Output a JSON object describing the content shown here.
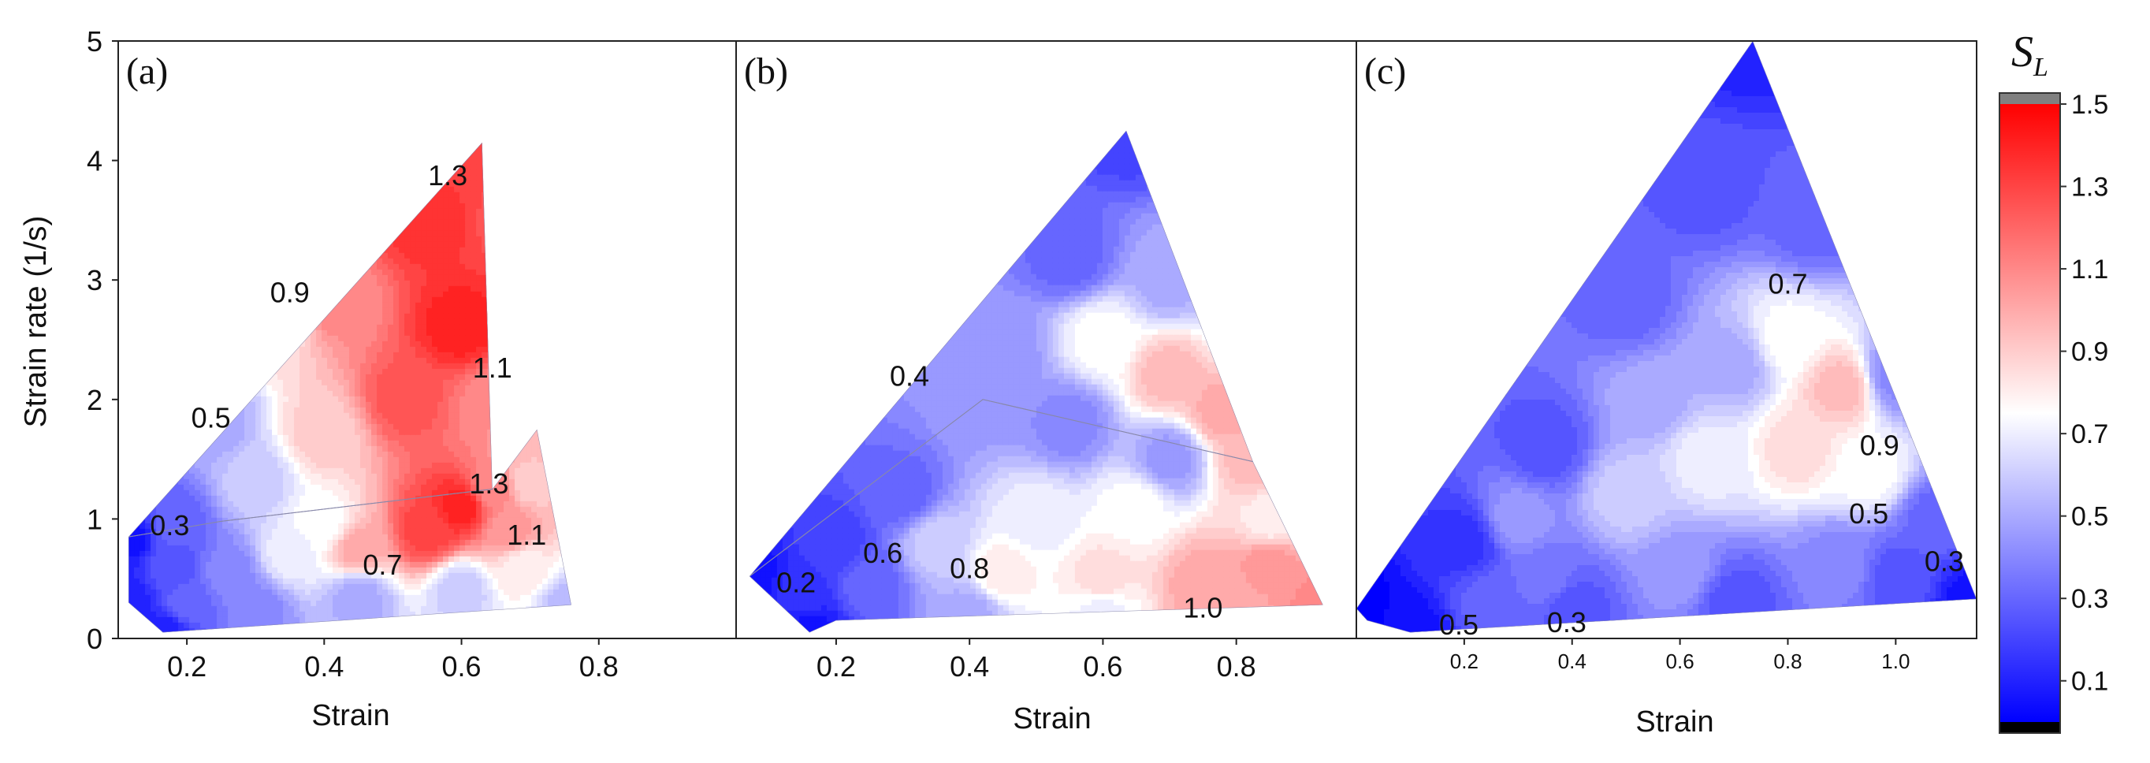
{
  "chart_data": {
    "type": "contour",
    "colorbar": {
      "title": "S",
      "title_subscript": "L",
      "min": 0.0,
      "max": 1.5,
      "ticks": [
        0.1,
        0.3,
        0.5,
        0.7,
        0.9,
        1.1,
        1.3,
        1.5
      ],
      "tick_labels": [
        "0.1",
        "0.3",
        "0.5",
        "0.7",
        "0.9",
        "1.1",
        "1.3",
        "1.5"
      ],
      "colors": {
        "low": "#0000ff",
        "mid": "#ffffff",
        "high": "#ff0000",
        "under": "#000000",
        "over": "#808080"
      }
    },
    "shared_y": {
      "label": "Strain rate (1/s)",
      "range": [
        0,
        5
      ],
      "ticks": [
        0,
        1,
        2,
        3,
        4,
        5
      ],
      "tick_labels": [
        "0",
        "1",
        "2",
        "3",
        "4",
        "5"
      ]
    },
    "panels": [
      {
        "id": "a",
        "label": "(a)",
        "xlabel": "Strain",
        "xrange": [
          0.1,
          1.0
        ],
        "xticks": [
          0.2,
          0.4,
          0.6,
          0.8
        ],
        "xtick_labels": [
          "0.2",
          "0.4",
          "0.6",
          "0.8"
        ],
        "hulls": [
          [
            [
              0.115,
              0.85
            ],
            [
              0.63,
              4.15
            ],
            [
              0.645,
              1.25
            ],
            [
              0.25,
              0.98
            ]
          ],
          [
            [
              0.115,
              0.85
            ],
            [
              0.25,
              0.98
            ],
            [
              0.645,
              1.25
            ],
            [
              0.71,
              1.75
            ],
            [
              0.76,
              0.28
            ],
            [
              0.165,
              0.05
            ],
            [
              0.115,
              0.3
            ]
          ]
        ],
        "field_points": [
          [
            0.115,
            0.85,
            0.05
          ],
          [
            0.115,
            0.3,
            0.1
          ],
          [
            0.165,
            0.05,
            0.1
          ],
          [
            0.76,
            0.28,
            0.55
          ],
          [
            0.71,
            1.75,
            0.95
          ],
          [
            0.645,
            1.25,
            1.1
          ],
          [
            0.63,
            4.15,
            1.3
          ],
          [
            0.18,
            0.95,
            0.3
          ],
          [
            0.24,
            1.8,
            0.5
          ],
          [
            0.33,
            2.6,
            0.85
          ],
          [
            0.42,
            2.8,
            1.1
          ],
          [
            0.55,
            3.5,
            1.35
          ],
          [
            0.6,
            2.6,
            1.4
          ],
          [
            0.52,
            2.0,
            1.25
          ],
          [
            0.4,
            1.7,
            0.9
          ],
          [
            0.3,
            1.3,
            0.6
          ],
          [
            0.68,
            3.5,
            1.25
          ],
          [
            0.65,
            2.0,
            1.1
          ],
          [
            0.6,
            1.1,
            1.4
          ],
          [
            0.55,
            0.9,
            1.3
          ],
          [
            0.45,
            0.75,
            1.0
          ],
          [
            0.35,
            0.7,
            0.7
          ],
          [
            0.26,
            0.55,
            0.4
          ],
          [
            0.2,
            0.3,
            0.3
          ],
          [
            0.3,
            0.25,
            0.4
          ],
          [
            0.45,
            0.35,
            0.5
          ],
          [
            0.6,
            0.4,
            0.6
          ],
          [
            0.69,
            0.6,
            0.8
          ],
          [
            0.67,
            0.9,
            1.05
          ],
          [
            0.4,
            0.95,
            0.75
          ],
          [
            0.7,
            1.3,
            0.9
          ],
          [
            0.18,
            0.6,
            0.25
          ]
        ],
        "contour_labels": [
          {
            "text": "1.3",
            "x": 0.58,
            "y": 3.88
          },
          {
            "text": "0.9",
            "x": 0.35,
            "y": 2.9
          },
          {
            "text": "1.1",
            "x": 0.645,
            "y": 2.27
          },
          {
            "text": "0.5",
            "x": 0.235,
            "y": 1.85
          },
          {
            "text": "1.3",
            "x": 0.64,
            "y": 1.3
          },
          {
            "text": "0.3",
            "x": 0.175,
            "y": 0.95
          },
          {
            "text": "1.1",
            "x": 0.695,
            "y": 0.87
          },
          {
            "text": "0.7",
            "x": 0.485,
            "y": 0.62
          }
        ]
      },
      {
        "id": "b",
        "label": "(b)",
        "xlabel": "Strain",
        "xrange": [
          0.05,
          0.98
        ],
        "xticks": [
          0.2,
          0.4,
          0.6,
          0.8
        ],
        "xtick_labels": [
          "0.2",
          "0.4",
          "0.6",
          "0.8"
        ],
        "hulls": [
          [
            [
              0.07,
              0.52
            ],
            [
              0.635,
              4.25
            ],
            [
              0.825,
              1.48
            ],
            [
              0.42,
              2.0
            ]
          ],
          [
            [
              0.07,
              0.52
            ],
            [
              0.42,
              2.0
            ],
            [
              0.825,
              1.48
            ],
            [
              0.93,
              0.28
            ],
            [
              0.2,
              0.15
            ],
            [
              0.16,
              0.05
            ]
          ]
        ],
        "field_points": [
          [
            0.07,
            0.52,
            0.05
          ],
          [
            0.16,
            0.05,
            0.05
          ],
          [
            0.635,
            4.25,
            0.2
          ],
          [
            0.93,
            0.28,
            1.1
          ],
          [
            0.825,
            1.48,
            0.95
          ],
          [
            0.42,
            2.0,
            0.45
          ],
          [
            0.2,
            0.8,
            0.2
          ],
          [
            0.3,
            1.2,
            0.3
          ],
          [
            0.45,
            2.4,
            0.45
          ],
          [
            0.55,
            3.2,
            0.3
          ],
          [
            0.6,
            2.5,
            0.75
          ],
          [
            0.7,
            2.2,
            0.95
          ],
          [
            0.78,
            1.9,
            1.0
          ],
          [
            0.7,
            3.0,
            0.5
          ],
          [
            0.55,
            1.8,
            0.4
          ],
          [
            0.7,
            1.5,
            0.45
          ],
          [
            0.35,
            0.8,
            0.6
          ],
          [
            0.45,
            0.55,
            0.8
          ],
          [
            0.6,
            0.5,
            0.85
          ],
          [
            0.75,
            0.45,
            1.0
          ],
          [
            0.85,
            0.6,
            1.05
          ],
          [
            0.25,
            0.45,
            0.3
          ],
          [
            0.4,
            0.2,
            0.5
          ],
          [
            0.6,
            0.2,
            0.7
          ],
          [
            0.8,
            0.25,
            1.0
          ],
          [
            0.85,
            1.0,
            0.8
          ],
          [
            0.5,
            1.0,
            0.7
          ],
          [
            0.65,
            1.1,
            0.75
          ],
          [
            0.15,
            0.35,
            0.15
          ],
          [
            0.82,
            2.6,
            0.7
          ]
        ],
        "contour_labels": [
          {
            "text": "0.4",
            "x": 0.31,
            "y": 2.2
          },
          {
            "text": "0.6",
            "x": 0.27,
            "y": 0.72
          },
          {
            "text": "0.8",
            "x": 0.4,
            "y": 0.59
          },
          {
            "text": "0.2",
            "x": 0.14,
            "y": 0.47
          },
          {
            "text": "1.0",
            "x": 0.75,
            "y": 0.26
          }
        ]
      },
      {
        "id": "c",
        "label": "(c)",
        "xlabel": "Strain",
        "xrange": [
          0.0,
          1.15
        ],
        "xticks": [
          0.2,
          0.4,
          0.6,
          0.8,
          1.0
        ],
        "xtick_labels": [
          "0.2",
          "0.4",
          "0.6",
          "0.8",
          "1.0"
        ],
        "hulls": [
          [
            [
              0.0,
              0.25
            ],
            [
              0.735,
              5.0
            ],
            [
              1.15,
              0.33
            ],
            [
              0.1,
              0.05
            ],
            [
              0.02,
              0.15
            ]
          ]
        ],
        "field_points": [
          [
            0.0,
            0.25,
            0.0
          ],
          [
            0.735,
            5.0,
            0.1
          ],
          [
            1.15,
            0.33,
            0.05
          ],
          [
            0.1,
            0.05,
            0.05
          ],
          [
            0.2,
            0.8,
            0.15
          ],
          [
            0.35,
            1.6,
            0.25
          ],
          [
            0.5,
            2.8,
            0.3
          ],
          [
            0.65,
            3.8,
            0.25
          ],
          [
            0.85,
            3.5,
            0.3
          ],
          [
            1.0,
            2.2,
            0.4
          ],
          [
            1.08,
            1.0,
            0.3
          ],
          [
            0.9,
            0.6,
            0.4
          ],
          [
            0.6,
            0.55,
            0.45
          ],
          [
            0.35,
            0.5,
            0.35
          ],
          [
            0.3,
            1.0,
            0.45
          ],
          [
            0.5,
            1.2,
            0.6
          ],
          [
            0.65,
            1.5,
            0.7
          ],
          [
            0.7,
            2.3,
            0.5
          ],
          [
            0.8,
            2.5,
            0.75
          ],
          [
            0.9,
            2.1,
            0.95
          ],
          [
            0.82,
            1.6,
            0.85
          ],
          [
            0.95,
            1.4,
            0.75
          ],
          [
            0.55,
            2.0,
            0.5
          ],
          [
            0.4,
            0.25,
            0.25
          ],
          [
            0.25,
            0.3,
            0.3
          ],
          [
            0.7,
            0.3,
            0.25
          ],
          [
            1.0,
            0.5,
            0.25
          ]
        ],
        "contour_labels": [
          {
            "text": "0.7",
            "x": 0.8,
            "y": 2.97
          },
          {
            "text": "0.9",
            "x": 0.97,
            "y": 1.62
          },
          {
            "text": "0.5",
            "x": 0.95,
            "y": 1.05
          },
          {
            "text": "0.3",
            "x": 1.09,
            "y": 0.65
          },
          {
            "text": "0.5",
            "x": 0.19,
            "y": 0.12
          },
          {
            "text": "0.3",
            "x": 0.39,
            "y": 0.14
          }
        ]
      }
    ]
  }
}
